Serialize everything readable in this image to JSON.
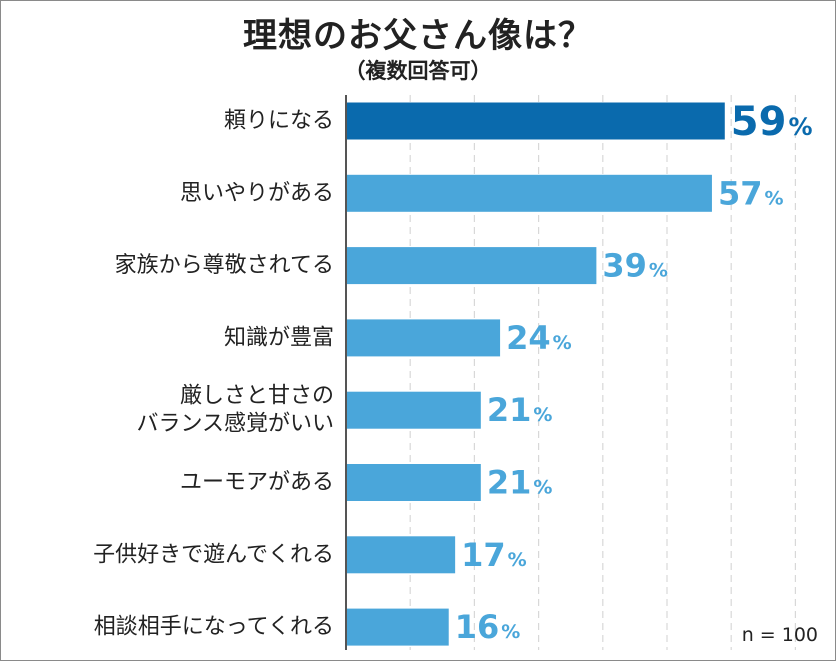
{
  "chart_data": {
    "type": "bar",
    "orientation": "horizontal",
    "title": "理想のお父さん像は？",
    "subtitle": "（複数回答可）",
    "categories": [
      [
        "頼りになる"
      ],
      [
        "思いやりがある"
      ],
      [
        "家族から尊敬されてる"
      ],
      [
        "知識が豊富"
      ],
      [
        "厳しさと甘さの",
        "バランス感覚がいい"
      ],
      [
        "ユーモアがある"
      ],
      [
        "子供好きで遊んでくれる"
      ],
      [
        "相談相手になってくれる"
      ]
    ],
    "values": [
      59,
      57,
      39,
      24,
      21,
      21,
      17,
      16
    ],
    "value_suffix": "%",
    "xlim": [
      0,
      70
    ],
    "grid": true,
    "highlight_index": 0,
    "colors": {
      "highlight": "#0a6aad",
      "bar": "#4aa6da",
      "grid": "#d8d8d8",
      "axis": "#555555"
    }
  },
  "sample_size": "n = 100"
}
